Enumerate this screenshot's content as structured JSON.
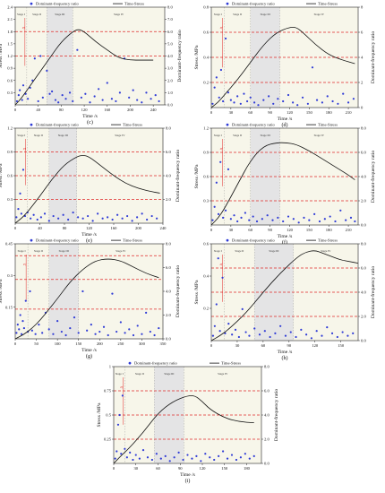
{
  "figure": {
    "legend": {
      "scatter_label": "Dominant-frequency ratio",
      "line_label": "Time-Stress",
      "scatter_color": "#2f3bd6",
      "line_color": "#111111"
    },
    "colors": {
      "threshold_line": "#e02a2a",
      "stage_shade": "#d6d6e0",
      "paper": "#f7f6ea"
    },
    "icons": {
      "scatter_marker": "filled-circle",
      "line_marker": "solid-line"
    },
    "stage_labels": [
      "Stage I",
      "Stage II",
      "Stage III",
      "Stage IV"
    ],
    "pf_label": "Pf",
    "y_left_label": "Stress /MPa",
    "y_right_label": "Dominant-frequency ratio",
    "x_label": "Time /s"
  },
  "chart_data": [
    {
      "type": "line+scatter",
      "panel_label": "(c)",
      "xlim": [
        0,
        260
      ],
      "xticks": [
        0,
        40,
        80,
        120,
        160,
        200,
        240
      ],
      "ylim_left": [
        0,
        2.4
      ],
      "yticks_left": [
        0.3,
        0.6,
        0.9,
        1.2,
        1.5,
        1.8,
        2.1,
        2.4
      ],
      "ylim_right": [
        0,
        8
      ],
      "yticks_right": [
        0,
        1,
        2,
        3,
        4,
        5,
        6,
        7,
        8
      ],
      "right_tick_format": "1",
      "thresholds_right": [
        4.0,
        6.0
      ],
      "stage_bounds": [
        0,
        20,
        55,
        100,
        260
      ],
      "stress_curve": {
        "x": [
          0,
          10,
          20,
          40,
          60,
          80,
          100,
          110,
          120,
          140,
          160,
          180,
          200,
          220,
          240
        ],
        "y": [
          0.0,
          0.15,
          0.35,
          0.75,
          1.15,
          1.55,
          1.8,
          1.86,
          1.8,
          1.55,
          1.35,
          1.15,
          1.1,
          1.1,
          1.1
        ]
      },
      "ratio_points": {
        "x": [
          3,
          6,
          8,
          12,
          14,
          18,
          22,
          26,
          30,
          34,
          40,
          44,
          48,
          55,
          60,
          64,
          70,
          75,
          82,
          88,
          95,
          100,
          108,
          115,
          122,
          130,
          138,
          145,
          152,
          160,
          168,
          175,
          182,
          190,
          198,
          205,
          212,
          220,
          228,
          236,
          244,
          250
        ],
        "y": [
          0.3,
          0.8,
          1.2,
          0.4,
          1.6,
          0.9,
          0.5,
          1.4,
          2.0,
          3.8,
          0.3,
          4.0,
          0.6,
          2.8,
          0.9,
          1.1,
          0.4,
          0.2,
          0.8,
          0.5,
          1.0,
          0.3,
          4.5,
          0.6,
          0.9,
          0.2,
          0.7,
          1.3,
          0.4,
          1.8,
          0.5,
          0.3,
          1.0,
          3.8,
          0.6,
          1.2,
          0.4,
          0.2,
          1.0,
          0.5,
          0.8,
          0.3
        ]
      }
    },
    {
      "type": "line+scatter",
      "panel_label": "(d)",
      "xlim": [
        0,
        225
      ],
      "xticks": [
        0,
        30,
        60,
        90,
        120,
        150,
        180,
        210
      ],
      "ylim_left": [
        0,
        0.8
      ],
      "yticks_left": [
        0.2,
        0.4,
        0.6,
        0.8
      ],
      "ylim_right": [
        0,
        8.0
      ],
      "yticks_right": [
        0,
        2,
        4,
        6,
        8
      ],
      "right_tick_format": "0",
      "thresholds_right": [
        2.0,
        4.0,
        6.0
      ],
      "stage_bounds": [
        0,
        20,
        60,
        105,
        225
      ],
      "stress_curve": {
        "x": [
          0,
          10,
          20,
          40,
          60,
          80,
          100,
          120,
          130,
          140,
          160,
          180,
          200,
          220
        ],
        "y": [
          0.0,
          0.04,
          0.1,
          0.22,
          0.36,
          0.5,
          0.6,
          0.64,
          0.64,
          0.6,
          0.5,
          0.42,
          0.38,
          0.35
        ]
      },
      "ratio_points": {
        "x": [
          2,
          5,
          8,
          12,
          15,
          18,
          22,
          26,
          30,
          35,
          40,
          45,
          50,
          55,
          60,
          66,
          72,
          80,
          88,
          95,
          102,
          110,
          118,
          125,
          132,
          140,
          148,
          155,
          162,
          170,
          178,
          186,
          194,
          202,
          210,
          218
        ],
        "y": [
          0.3,
          1.6,
          2.4,
          0.8,
          3.0,
          0.5,
          5.5,
          1.2,
          0.6,
          0.4,
          0.9,
          0.3,
          1.1,
          0.5,
          0.8,
          0.4,
          0.2,
          0.6,
          0.9,
          0.3,
          0.7,
          0.5,
          1.0,
          0.4,
          0.2,
          0.8,
          0.3,
          3.2,
          0.6,
          0.4,
          0.9,
          0.5,
          0.3,
          1.1,
          0.4,
          0.7
        ]
      }
    },
    {
      "type": "line+scatter",
      "panel_label": "(e)",
      "xlim": [
        0,
        240
      ],
      "xticks": [
        0,
        40,
        80,
        120,
        160,
        200,
        240
      ],
      "ylim_left": [
        0,
        1.2
      ],
      "yticks_left": [
        0.3,
        0.6,
        0.9,
        1.2
      ],
      "ylim_right": [
        0,
        8.0
      ],
      "yticks_right": [
        2,
        4,
        6,
        8
      ],
      "right_tick_format": "1",
      "thresholds_right": [
        2.0,
        4.0,
        6.0
      ],
      "stage_bounds": [
        0,
        20,
        55,
        100,
        240
      ],
      "stress_curve": {
        "x": [
          0,
          10,
          20,
          40,
          60,
          80,
          100,
          110,
          120,
          140,
          160,
          180,
          200,
          220,
          235
        ],
        "y": [
          0.0,
          0.06,
          0.14,
          0.34,
          0.56,
          0.74,
          0.84,
          0.86,
          0.84,
          0.72,
          0.6,
          0.5,
          0.44,
          0.4,
          0.38
        ]
      },
      "ratio_points": {
        "x": [
          2,
          5,
          8,
          10,
          13,
          16,
          20,
          25,
          30,
          36,
          42,
          48,
          55,
          62,
          70,
          78,
          86,
          94,
          102,
          110,
          118,
          126,
          134,
          142,
          150,
          158,
          166,
          174,
          182,
          190,
          198,
          206,
          214,
          222,
          230
        ],
        "y": [
          0.5,
          1.2,
          2.5,
          0.8,
          4.5,
          0.6,
          0.9,
          0.4,
          0.7,
          0.3,
          0.5,
          0.8,
          0.2,
          0.6,
          0.4,
          0.7,
          0.3,
          0.9,
          0.5,
          0.4,
          0.6,
          0.2,
          0.8,
          0.4,
          0.5,
          0.3,
          0.7,
          0.4,
          0.6,
          0.2,
          0.5,
          0.8,
          0.3,
          0.6,
          0.4
        ]
      }
    },
    {
      "type": "line+scatter",
      "panel_label": "(f)",
      "xlim": [
        0,
        225
      ],
      "xticks": [
        0,
        30,
        60,
        90,
        120,
        150,
        180,
        210
      ],
      "ylim_left": [
        0,
        1.2
      ],
      "yticks_left": [
        0.3,
        0.6,
        0.9,
        1.2
      ],
      "ylim_right": [
        0,
        8.0
      ],
      "yticks_right": [
        0,
        2,
        4,
        6,
        8
      ],
      "right_tick_format": "1",
      "thresholds_right": [
        2.0,
        4.0,
        6.0
      ],
      "stage_bounds": [
        0,
        20,
        60,
        105,
        225
      ],
      "stress_curve": {
        "x": [
          0,
          10,
          20,
          40,
          60,
          80,
          100,
          115,
          130,
          150,
          170,
          190,
          210,
          220
        ],
        "y": [
          0.0,
          0.08,
          0.2,
          0.5,
          0.8,
          0.98,
          1.02,
          1.02,
          1.0,
          0.92,
          0.82,
          0.72,
          0.62,
          0.56
        ]
      },
      "ratio_points": {
        "x": [
          2,
          5,
          8,
          11,
          14,
          18,
          22,
          26,
          30,
          35,
          40,
          46,
          52,
          58,
          64,
          70,
          78,
          86,
          94,
          102,
          110,
          118,
          126,
          134,
          142,
          150,
          158,
          166,
          174,
          182,
          190,
          198,
          206,
          214,
          220
        ],
        "y": [
          0.4,
          1.5,
          3.5,
          0.9,
          5.2,
          0.6,
          1.2,
          4.6,
          0.5,
          0.8,
          0.3,
          0.6,
          1.0,
          0.4,
          0.7,
          0.3,
          0.5,
          0.8,
          0.4,
          0.6,
          0.3,
          0.7,
          0.5,
          0.2,
          0.6,
          0.4,
          0.9,
          0.3,
          0.5,
          0.7,
          0.3,
          1.2,
          0.4,
          0.6,
          0.3
        ]
      }
    },
    {
      "type": "line+scatter",
      "panel_label": "(g)",
      "xlim": [
        0,
        350
      ],
      "xticks": [
        0,
        50,
        100,
        150,
        200,
        250,
        300,
        350
      ],
      "ylim_left": [
        0,
        0.45
      ],
      "yticks_left": [
        0.15,
        0.3,
        0.45
      ],
      "ylim_right": [
        0,
        8.0
      ],
      "yticks_right": [
        0,
        2,
        4,
        6,
        8
      ],
      "right_tick_format": "1",
      "thresholds_right": [
        2.5,
        5.0,
        7.0
      ],
      "stage_bounds": [
        0,
        30,
        80,
        150,
        350
      ],
      "stress_curve": {
        "x": [
          0,
          20,
          40,
          60,
          80,
          100,
          130,
          160,
          190,
          220,
          250,
          280,
          310,
          340
        ],
        "y": [
          0.0,
          0.02,
          0.05,
          0.09,
          0.14,
          0.19,
          0.27,
          0.33,
          0.37,
          0.38,
          0.37,
          0.34,
          0.31,
          0.29
        ]
      },
      "ratio_points": {
        "x": [
          3,
          6,
          9,
          12,
          15,
          18,
          21,
          25,
          30,
          35,
          40,
          48,
          56,
          64,
          72,
          80,
          90,
          100,
          110,
          120,
          130,
          140,
          150,
          160,
          170,
          180,
          190,
          200,
          210,
          220,
          230,
          240,
          250,
          260,
          270,
          280,
          290,
          300,
          310,
          320,
          330,
          340
        ],
        "y": [
          0.5,
          1.2,
          0.8,
          2.0,
          0.4,
          1.5,
          0.9,
          3.2,
          0.6,
          4.0,
          0.7,
          0.4,
          1.2,
          0.5,
          2.2,
          0.8,
          0.4,
          1.5,
          0.6,
          0.3,
          0.9,
          1.8,
          0.5,
          4.0,
          0.7,
          1.2,
          0.4,
          0.6,
          1.0,
          0.3,
          3.8,
          0.6,
          1.4,
          0.5,
          0.8,
          0.3,
          1.1,
          0.4,
          2.2,
          0.6,
          0.3,
          0.9
        ]
      }
    },
    {
      "type": "line+scatter",
      "panel_label": "(h)",
      "xlim": [
        0,
        170
      ],
      "xticks": [
        0,
        30,
        60,
        90,
        120,
        150
      ],
      "ylim_left": [
        0,
        0.6
      ],
      "yticks_left": [
        0.2,
        0.4,
        0.6
      ],
      "ylim_right": [
        0,
        8.0
      ],
      "yticks_right": [
        0,
        2,
        4,
        6,
        8
      ],
      "right_tick_format": "1",
      "thresholds_right": [
        2.0,
        4.0,
        6.0
      ],
      "stage_bounds": [
        0,
        15,
        50,
        95,
        170
      ],
      "stress_curve": {
        "x": [
          0,
          10,
          20,
          40,
          60,
          80,
          100,
          110,
          120,
          130,
          140,
          150,
          160,
          170
        ],
        "y": [
          0.0,
          0.03,
          0.07,
          0.17,
          0.3,
          0.42,
          0.52,
          0.55,
          0.56,
          0.54,
          0.52,
          0.5,
          0.49,
          0.48
        ]
      },
      "ratio_points": {
        "x": [
          2,
          4,
          6,
          8,
          10,
          13,
          16,
          20,
          24,
          28,
          32,
          36,
          40,
          44,
          50,
          56,
          62,
          68,
          74,
          80,
          86,
          92,
          98,
          104,
          110,
          116,
          122,
          128,
          134,
          140,
          146,
          152,
          158,
          164
        ],
        "y": [
          0.4,
          1.2,
          3.0,
          6.8,
          0.8,
          5.2,
          0.6,
          1.4,
          0.5,
          0.9,
          0.3,
          2.6,
          0.7,
          0.4,
          1.0,
          0.5,
          0.8,
          0.3,
          0.6,
          1.2,
          0.4,
          0.7,
          0.3,
          0.9,
          0.5,
          0.2,
          0.8,
          0.4,
          1.1,
          0.6,
          0.3,
          0.7,
          0.4,
          0.6
        ]
      }
    },
    {
      "type": "line+scatter",
      "panel_label": "(i)",
      "xlim": [
        0,
        200
      ],
      "xticks": [
        0,
        30,
        60,
        90,
        120,
        150,
        180
      ],
      "ylim_left": [
        0,
        1.0
      ],
      "yticks_left": [
        0.25,
        0.5,
        0.75,
        1.0
      ],
      "ylim_right": [
        0,
        8.0
      ],
      "yticks_right": [
        0,
        2,
        4,
        6,
        8
      ],
      "right_tick_format": "1",
      "thresholds_right": [
        2.0,
        4.0,
        6.0
      ],
      "stage_bounds": [
        0,
        15,
        55,
        95,
        200
      ],
      "stress_curve": {
        "x": [
          0,
          10,
          20,
          40,
          60,
          80,
          100,
          110,
          120,
          130,
          150,
          170,
          190
        ],
        "y": [
          0.0,
          0.08,
          0.15,
          0.32,
          0.52,
          0.64,
          0.7,
          0.7,
          0.64,
          0.56,
          0.47,
          0.43,
          0.42
        ]
      },
      "ratio_points": {
        "x": [
          2,
          4,
          6,
          8,
          10,
          12,
          15,
          18,
          22,
          26,
          30,
          35,
          40,
          46,
          52,
          58,
          64,
          70,
          76,
          82,
          88,
          94,
          100,
          106,
          112,
          118,
          124,
          130,
          136,
          142,
          148,
          154,
          160,
          166,
          172,
          178,
          184,
          190
        ],
        "y": [
          0.4,
          1.0,
          3.2,
          4.0,
          0.8,
          5.6,
          1.2,
          0.5,
          0.9,
          0.3,
          0.7,
          0.4,
          1.1,
          0.5,
          0.3,
          0.8,
          0.4,
          0.6,
          0.2,
          0.5,
          0.9,
          0.3,
          0.7,
          0.4,
          0.6,
          0.2,
          0.8,
          0.5,
          0.3,
          0.6,
          1.0,
          0.4,
          0.7,
          0.3,
          0.5,
          0.8,
          0.4,
          0.6
        ]
      }
    }
  ]
}
